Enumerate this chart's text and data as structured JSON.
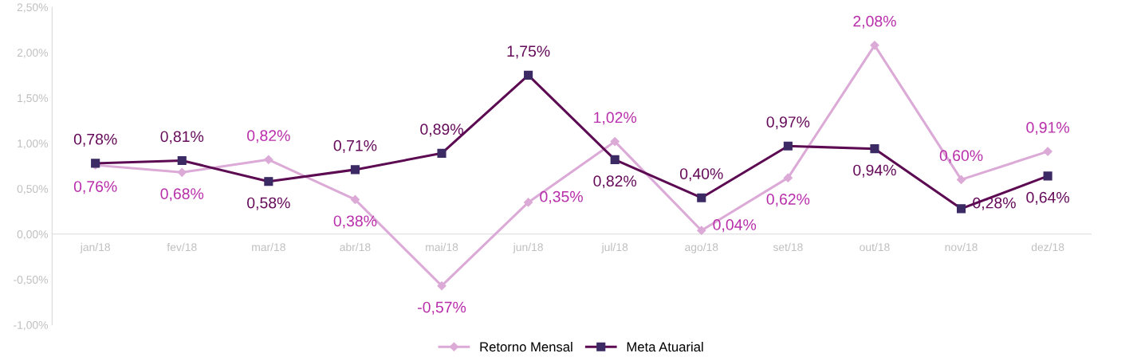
{
  "chart_data": {
    "type": "line",
    "categories": [
      "jan/18",
      "fev/18",
      "mar/18",
      "abr/18",
      "mai/18",
      "jun/18",
      "jul/18",
      "ago/18",
      "set/18",
      "out/18",
      "nov/18",
      "dez/18"
    ],
    "series": [
      {
        "name": "Retorno Mensal",
        "color": "#dcaad7",
        "marker": "diamond",
        "values": [
          0.76,
          0.68,
          0.82,
          0.38,
          -0.57,
          0.35,
          1.02,
          0.04,
          0.62,
          2.08,
          0.6,
          0.91
        ],
        "value_labels": [
          "0,76%",
          "0,68%",
          "0,82%",
          "0,38%",
          "-0,57%",
          "0,35%",
          "1,02%",
          "0,04%",
          "0,62%",
          "2,08%",
          "0,60%",
          "0,91%"
        ]
      },
      {
        "name": "Meta Atuarial",
        "color": "#5c0a52",
        "marker": "square",
        "values": [
          0.78,
          0.81,
          0.58,
          0.71,
          0.89,
          1.75,
          0.82,
          0.4,
          0.97,
          0.94,
          0.28,
          0.64
        ],
        "value_labels": [
          "0,78%",
          "0,81%",
          "0,58%",
          "0,71%",
          "0,89%",
          "1,75%",
          "0,82%",
          "0,40%",
          "0,97%",
          "0,94%",
          "0,28%",
          "0,64%"
        ]
      }
    ],
    "ylim": [
      -1.0,
      2.5
    ],
    "yticks": [
      {
        "value": -1.0,
        "label": "-1,00%"
      },
      {
        "value": -0.5,
        "label": "-0,50%"
      },
      {
        "value": 0.0,
        "label": "0,00%"
      },
      {
        "value": 0.5,
        "label": "0,50%"
      },
      {
        "value": 1.0,
        "label": "1,00%"
      },
      {
        "value": 1.5,
        "label": "1,50%"
      },
      {
        "value": 2.0,
        "label": "2,00%"
      },
      {
        "value": 2.5,
        "label": "2,50%"
      }
    ],
    "grid": false,
    "legend": "bottom",
    "line_style": "solid"
  }
}
